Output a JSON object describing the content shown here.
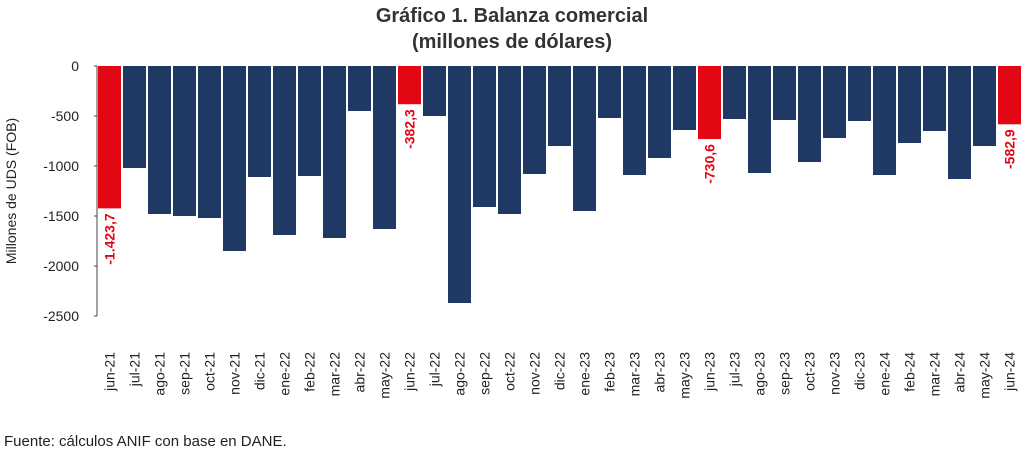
{
  "chart_data": {
    "type": "bar",
    "title": "Gráfico 1. Balanza comercial",
    "subtitle": "(millones de dólares)",
    "y_label": "Millones de UDS (FOB)",
    "source": "Fuente: cálculos ANIF con base en DANE.",
    "categories": [
      "jun-21",
      "jul-21",
      "ago-21",
      "sep-21",
      "oct-21",
      "nov-21",
      "dic-21",
      "ene-22",
      "feb-22",
      "mar-22",
      "abr-22",
      "may-22",
      "jun-22",
      "jul-22",
      "ago-22",
      "sep-22",
      "oct-22",
      "nov-22",
      "dic-22",
      "ene-23",
      "feb-23",
      "mar-23",
      "abr-23",
      "may-23",
      "jun-23",
      "jul-23",
      "ago-23",
      "sep-23",
      "oct-23",
      "nov-23",
      "dic-23",
      "ene-24",
      "feb-24",
      "mar-24",
      "abr-24",
      "may-24",
      "jun-24"
    ],
    "values": [
      -1423.7,
      -1020,
      -1480,
      -1500,
      -1520,
      -1850,
      -1110,
      -1690,
      -1100,
      -1720,
      -450,
      -1630,
      -382.3,
      -500,
      -2370,
      -1410,
      -1480,
      -1080,
      -800,
      -1450,
      -520,
      -1090,
      -920,
      -640,
      -730.6,
      -530,
      -1070,
      -540,
      -960,
      -720,
      -550,
      -1090,
      -770,
      -650,
      -1130,
      -800,
      -582.9
    ],
    "value_labels": [
      "-1.423,7",
      null,
      null,
      null,
      null,
      null,
      null,
      null,
      null,
      null,
      null,
      null,
      "-382,3",
      null,
      null,
      null,
      null,
      null,
      null,
      null,
      null,
      null,
      null,
      null,
      "-730,6",
      null,
      null,
      null,
      null,
      null,
      null,
      null,
      null,
      null,
      null,
      null,
      "-582,9"
    ],
    "colors": [
      "#e30613",
      "#1f3864",
      "#1f3864",
      "#1f3864",
      "#1f3864",
      "#1f3864",
      "#1f3864",
      "#1f3864",
      "#1f3864",
      "#1f3864",
      "#1f3864",
      "#1f3864",
      "#e30613",
      "#1f3864",
      "#1f3864",
      "#1f3864",
      "#1f3864",
      "#1f3864",
      "#1f3864",
      "#1f3864",
      "#1f3864",
      "#1f3864",
      "#1f3864",
      "#1f3864",
      "#e30613",
      "#1f3864",
      "#1f3864",
      "#1f3864",
      "#1f3864",
      "#1f3864",
      "#1f3864",
      "#1f3864",
      "#1f3864",
      "#1f3864",
      "#1f3864",
      "#1f3864",
      "#e30613"
    ],
    "ylim": [
      -2500,
      0
    ],
    "yticks": [
      0,
      -500,
      -1000,
      -1500,
      -2000,
      -2500
    ]
  }
}
